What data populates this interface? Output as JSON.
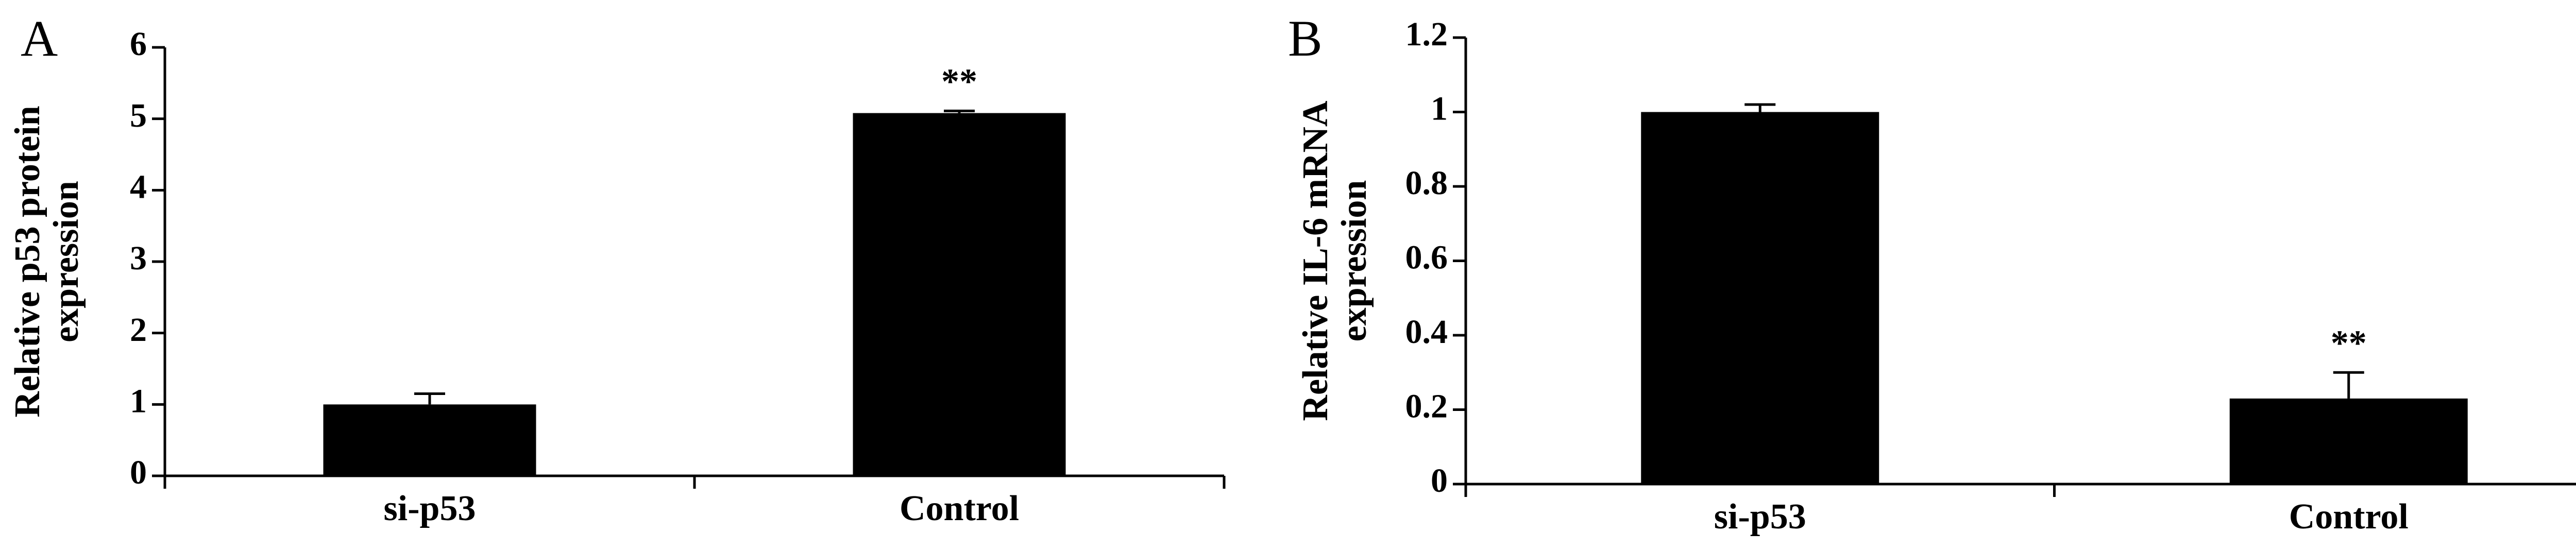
{
  "chart_data": [
    {
      "type": "bar",
      "panel": "A",
      "ylabel": [
        "Relative p53 protein",
        "expression"
      ],
      "categories": [
        "si-p53",
        "Control"
      ],
      "values": [
        1.0,
        5.08
      ],
      "errors": [
        0.15,
        0.03
      ],
      "annotations": [
        null,
        "**"
      ],
      "color": "#000000",
      "ylim": [
        0,
        6
      ],
      "yticks": [
        0,
        1,
        2,
        3,
        4,
        5,
        6
      ]
    },
    {
      "type": "bar",
      "panel": "B",
      "ylabel": [
        "Relative IL-6 mRNA",
        "expression"
      ],
      "categories": [
        "si-p53",
        "Control"
      ],
      "values": [
        1.0,
        0.23
      ],
      "errors": [
        0.02,
        0.07
      ],
      "annotations": [
        null,
        "**"
      ],
      "color": "#000000",
      "ylim": [
        0,
        1.2
      ],
      "yticks": [
        0,
        0.2,
        0.4,
        0.6,
        0.8,
        1,
        1.2
      ]
    }
  ]
}
